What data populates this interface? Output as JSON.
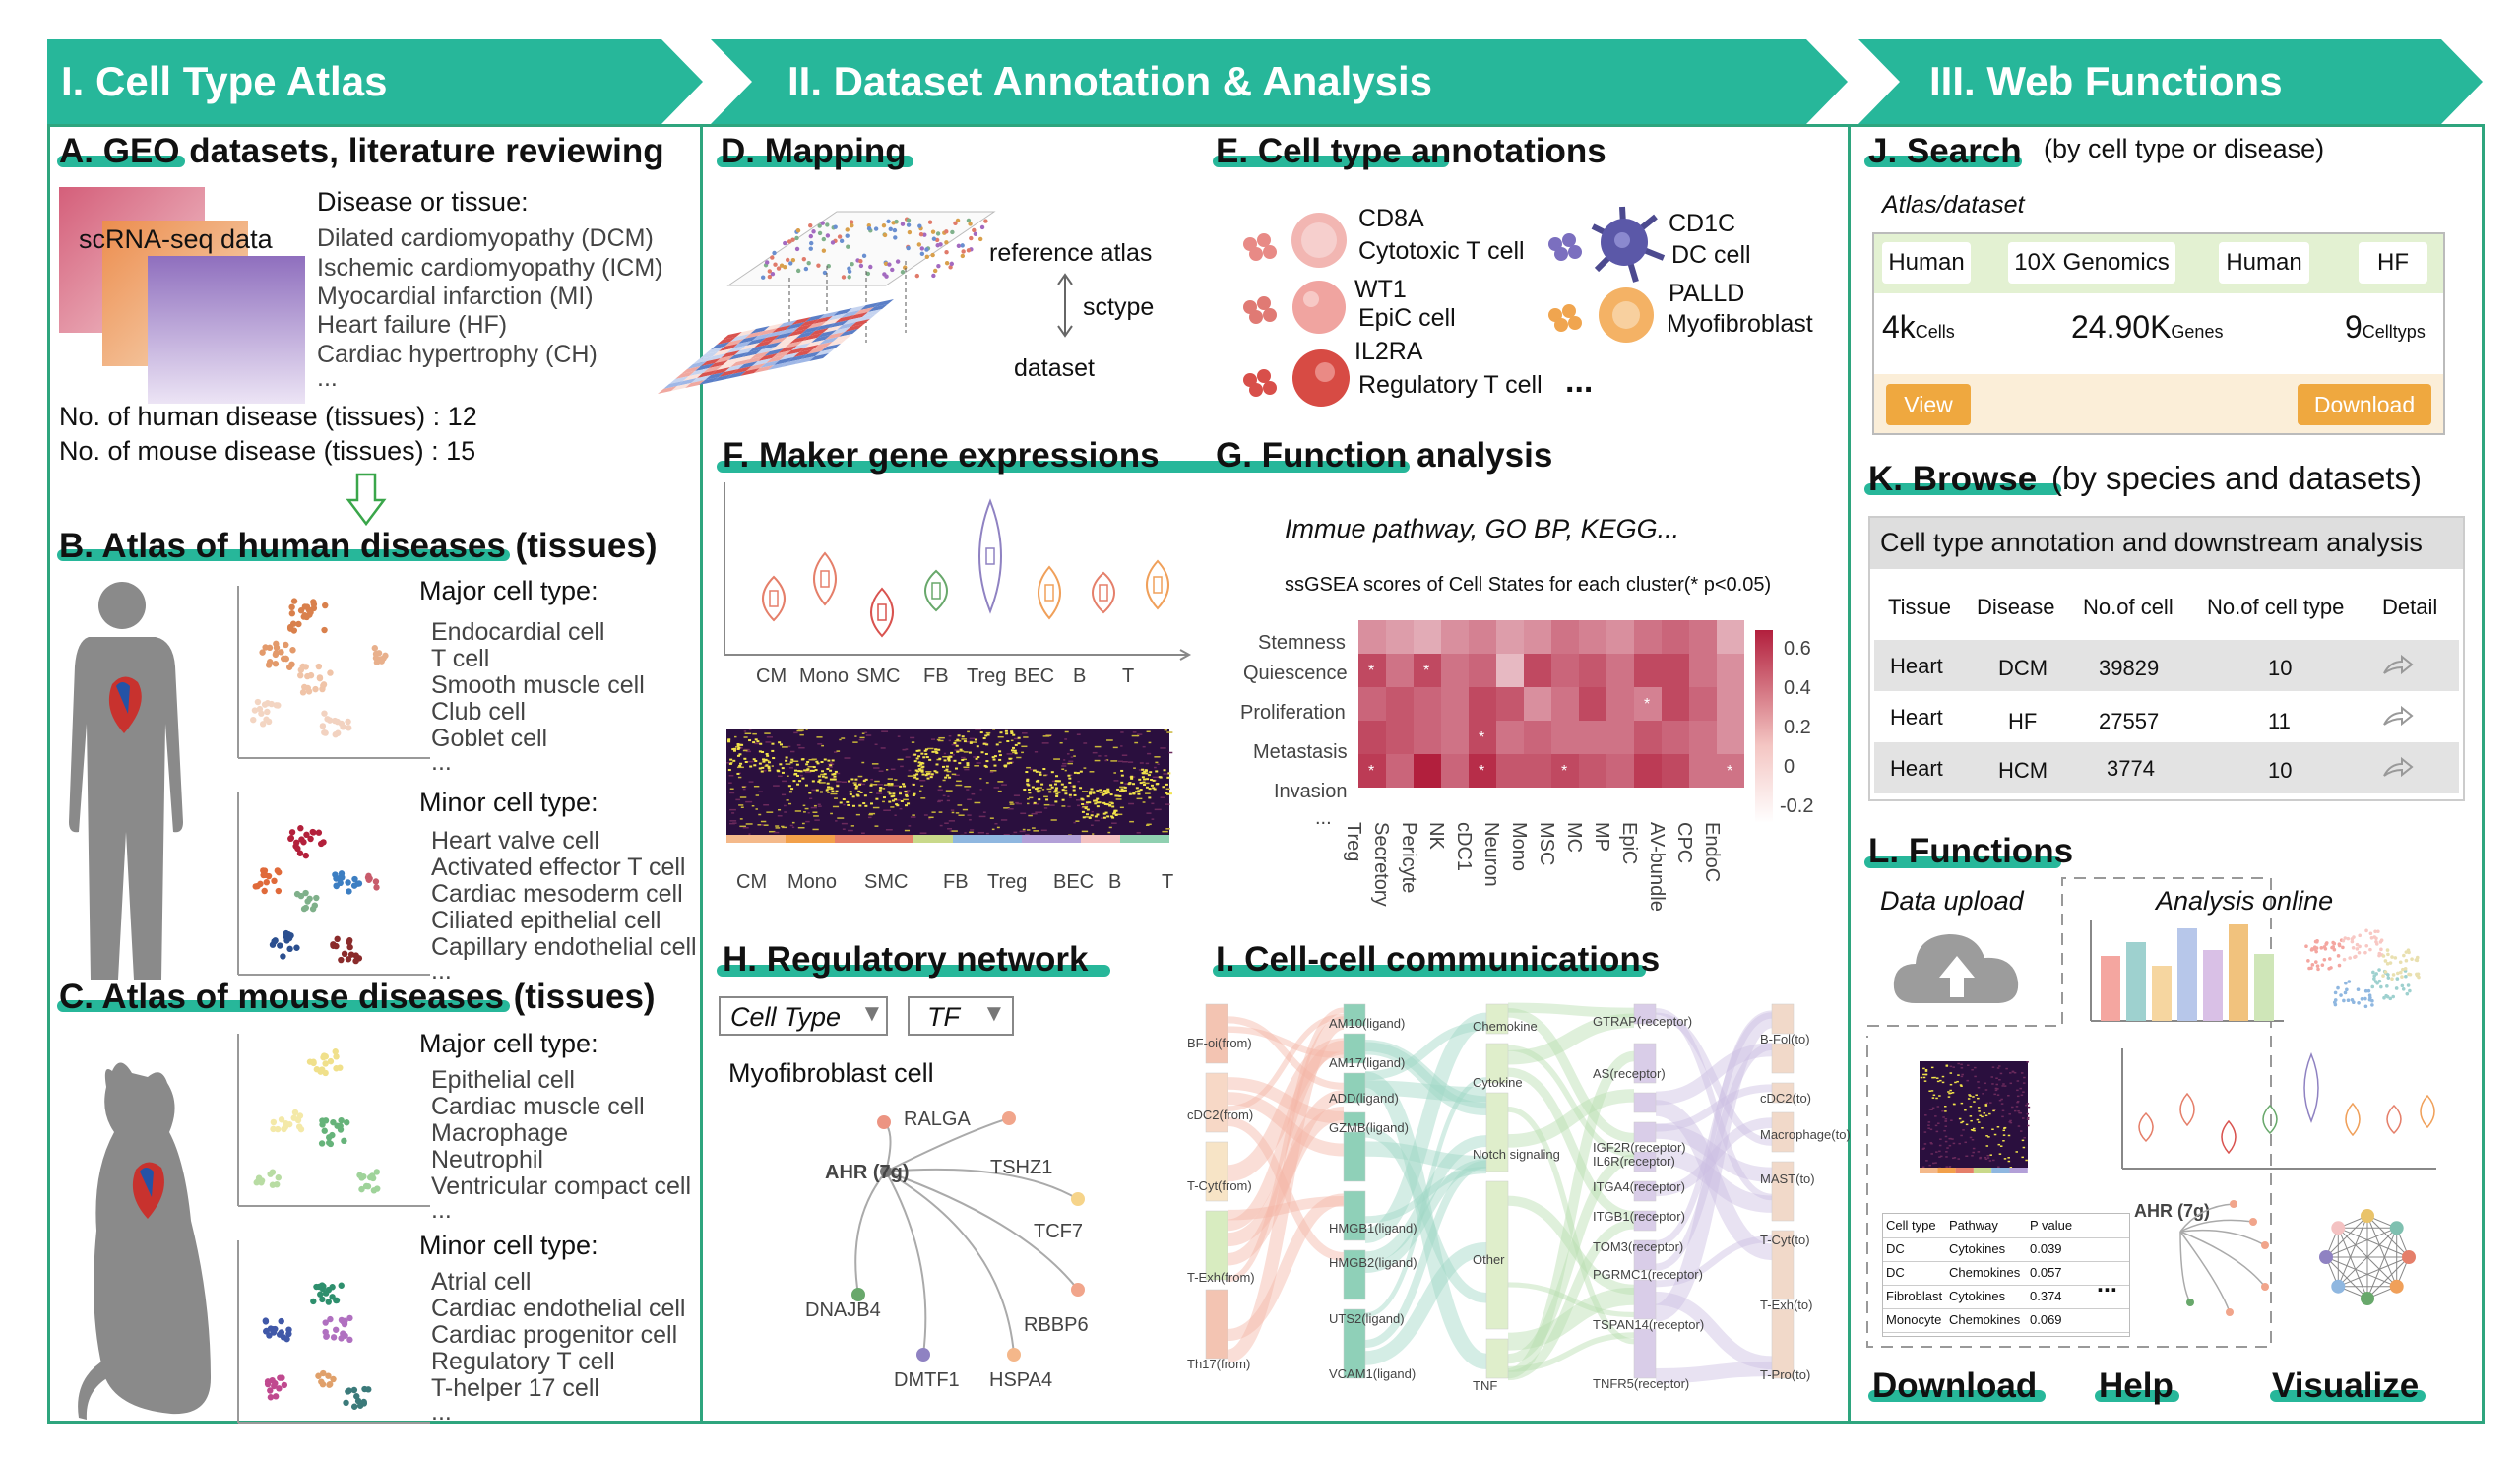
{
  "banners": {
    "b1": "I. Cell Type Atlas",
    "b2": "II. Dataset Annotation & Analysis",
    "b3": "III. Web Functions"
  },
  "colors": {
    "accent": "#27b79a",
    "border": "#2ea57e",
    "orange": "#efa83f",
    "beige": "#fbeed8",
    "lightgreen": "#e3f1d2"
  },
  "secA": {
    "title": "A. GEO datasets, literature reviewing",
    "card_label": "scRNA-seq data",
    "disease_header": "Disease or tissue:",
    "diseases": [
      "Dilated cardiomyopathy (DCM)",
      "Ischemic cardiomyopathy (ICM)",
      "Myocardial infarction (MI)",
      "Heart failure (HF)",
      "Cardiac hypertrophy (CH)",
      "..."
    ],
    "human_count": "No. of human disease (tissues) : 12",
    "mouse_count": "No. of mouse disease (tissues) : 15"
  },
  "secB": {
    "title": "B. Atlas of human diseases (tissues)",
    "major_header": "Major cell type:",
    "major": [
      "Endocardial cell",
      "T cell",
      "Smooth muscle cell",
      "Club cell",
      "Goblet cell",
      "..."
    ],
    "minor_header": "Minor cell type:",
    "minor": [
      "Heart valve cell",
      "Activated effector T cell",
      "Cardiac mesoderm cell",
      "Ciliated epithelial cell",
      "Capillary endothelial cell",
      "..."
    ]
  },
  "secC": {
    "title": "C. Atlas of mouse diseases (tissues)",
    "major_header": "Major cell type:",
    "major": [
      "Epithelial cell",
      "Cardiac muscle cell",
      "Macrophage",
      "Neutrophil",
      "Ventricular compact cell",
      "..."
    ],
    "minor_header": "Minor cell type:",
    "minor": [
      "Atrial cell",
      "Cardiac endothelial cell",
      "Cardiac progenitor cell",
      "Regulatory T cell",
      "T-helper 17 cell",
      "..."
    ]
  },
  "secD": {
    "title": "D. Mapping",
    "ref": "reference atlas",
    "tool": "sctype",
    "dataset": "dataset"
  },
  "secE": {
    "title": "E. Cell type annotations",
    "items": [
      {
        "marker": "CD8A",
        "cell": "Cytotoxic T cell"
      },
      {
        "marker": "WT1",
        "cell": "EpiC cell"
      },
      {
        "marker": "IL2RA",
        "cell": "Regulatory T cell"
      },
      {
        "marker": "CD1C",
        "cell": "DC cell"
      },
      {
        "marker": "PALLD",
        "cell": "Myofibroblast"
      }
    ],
    "more": "..."
  },
  "secF": {
    "title": "F. Maker gene expressions",
    "violin_labels": [
      "CM",
      "Mono",
      "SMC",
      "FB",
      "Treg",
      "BEC",
      "B",
      "T"
    ],
    "heat_labels": [
      "CM",
      "Mono",
      "SMC",
      "FB",
      "Treg",
      "BEC",
      "B",
      "T"
    ]
  },
  "secG": {
    "title": "G. Function analysis",
    "subtitle": "Immue pathway, GO BP, KEGG...",
    "chart_title": "ssGSEA scores of Cell States for each cluster(* p<0.05)",
    "rows": [
      "Stemness",
      "Quiescence",
      "Proliferation",
      "Metastasis",
      "Invasion",
      "..."
    ],
    "cols": [
      "Treg",
      "Secretory",
      "Pericyte",
      "NK",
      "cDC1",
      "Neuron",
      "Mono",
      "MSC",
      "MC",
      "MP",
      "EpiC",
      "AV-bundle",
      "CPC",
      "EndoC"
    ],
    "scale": [
      "0.6",
      "0.4",
      "0.2",
      "0",
      "-0.2"
    ]
  },
  "secH": {
    "title": "H. Regulatory network",
    "select1": "Cell Type",
    "select2": "TF",
    "cell_label": "Myofibroblast cell",
    "hub": "AHR (7g)",
    "targets": [
      "RALGA",
      "TSHZ1",
      "TCF7",
      "RBBP6",
      "HSPA4",
      "DMTF1",
      "DNAJB4"
    ]
  },
  "secI": {
    "title": "I. Cell-cell communications",
    "from": [
      "BF-oi(from)",
      "cDC2(from)",
      "T-Cyt(from)",
      "T-Exh(from)",
      "Th17(from)"
    ],
    "ligands": [
      "AM10(ligand)",
      "AM17(ligand)",
      "ADD(ligand)",
      "GZMB(ligand)",
      "HMGB1(ligand)",
      "HMGB2(ligand)",
      "UTS2(ligand)",
      "VCAM1(ligand)"
    ],
    "pathways": [
      "Chemokine",
      "Cytokine",
      "Notch signaling",
      "Other",
      "TNF"
    ],
    "receptors": [
      "GTRAP(receptor)",
      "AS(receptor)",
      "IGF2R(receptor)",
      "IL6R(receptor)",
      "ITGA4(receptor)",
      "ITGB1(receptor)",
      "TOM3(receptor)",
      "PGRMC1(receptor)",
      "TSPAN14(receptor)",
      "TNFR5(receptor)"
    ],
    "to": [
      "B-Fol(to)",
      "cDC2(to)",
      "Macrophage(to)",
      "MAST(to)",
      "T-Cyt(to)",
      "T-Exh(to)",
      "T-Pro(to)"
    ]
  },
  "secJ": {
    "title": "J. Search",
    "sub": "(by cell type or disease)",
    "atlas": "Atlas/dataset",
    "chips": [
      "Human",
      "10X Genomics",
      "Human",
      "HF"
    ],
    "stats": [
      {
        "value": "4k",
        "unit": "Cells"
      },
      {
        "value": "24.90K",
        "unit": "Genes"
      },
      {
        "value": "9",
        "unit": "Celltyps"
      }
    ],
    "view": "View",
    "download": "Download"
  },
  "secK": {
    "title": "K. Browse",
    "sub": "(by species and datasets)",
    "table_title": "Cell type annotation and downstream analysis",
    "headers": [
      "Tissue",
      "Disease",
      "No.of cell",
      "No.of cell type",
      "Detail"
    ],
    "rows": [
      [
        "Heart",
        "DCM",
        "39829",
        "10"
      ],
      [
        "Heart",
        "HF",
        "27557",
        "11"
      ],
      [
        "Heart",
        "HCM",
        "3774",
        "10"
      ]
    ]
  },
  "secL": {
    "title": "L. Functions",
    "upload": "Data upload",
    "analysis": "Analysis online",
    "mini_hub": "AHR (7g)",
    "mini_table": {
      "headers": [
        "Cell type",
        "Pathway",
        "P value"
      ],
      "rows": [
        [
          "DC",
          "Cytokines",
          "0.039"
        ],
        [
          "DC",
          "Chemokines",
          "0.057"
        ],
        [
          "Fibroblast",
          "Cytokines",
          "0.374"
        ],
        [
          "Monocyte",
          "Chemokines",
          "0.069"
        ]
      ],
      "more": "..."
    },
    "buttons": [
      "Download",
      "Help",
      "Visualize"
    ]
  }
}
